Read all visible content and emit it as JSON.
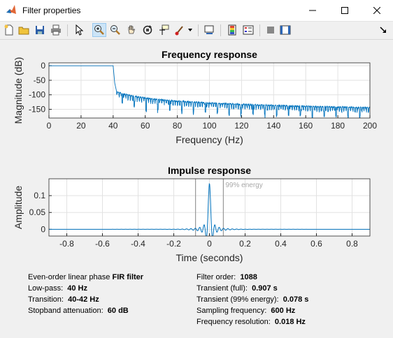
{
  "window": {
    "title": "Filter properties"
  },
  "toolbar": {
    "items": [
      {
        "name": "new-figure-icon"
      },
      {
        "name": "open-file-icon"
      },
      {
        "name": "save-icon"
      },
      {
        "name": "print-icon"
      },
      {
        "name": "edit-plot-cursor-icon"
      },
      {
        "name": "zoom-in-icon",
        "active": true
      },
      {
        "name": "zoom-out-icon"
      },
      {
        "name": "pan-hand-icon"
      },
      {
        "name": "rotate-3d-icon"
      },
      {
        "name": "data-cursor-icon"
      },
      {
        "name": "brush-icon"
      },
      {
        "name": "link-plot-icon"
      },
      {
        "name": "insert-colorbar-icon"
      },
      {
        "name": "insert-legend-icon"
      },
      {
        "name": "hide-plot-tools-icon"
      },
      {
        "name": "show-plot-tools-icon"
      }
    ]
  },
  "chart_data": [
    {
      "type": "line",
      "title": "Frequency response",
      "xlabel": "Frequency (Hz)",
      "ylabel": "Magnitude (dB)",
      "xlim": [
        0,
        200
      ],
      "ylim": [
        -180,
        10
      ],
      "xticks": [
        "0",
        "20",
        "40",
        "60",
        "80",
        "100",
        "120",
        "140",
        "160",
        "180",
        "200"
      ],
      "yticks": [
        "0",
        "-50",
        "-100",
        "-150"
      ],
      "grid": true,
      "series": [
        {
          "color": "#0072bd",
          "x": [
            0,
            40,
            41,
            42,
            44,
            60,
            100,
            150,
            200
          ],
          "y": [
            0,
            0,
            -50,
            -80,
            -90,
            -105,
            -115,
            -120,
            -125
          ]
        }
      ]
    },
    {
      "type": "line",
      "title": "Impulse response",
      "xlabel": "Time (seconds)",
      "ylabel": "Amplitude",
      "xlim": [
        -0.9,
        0.9
      ],
      "ylim": [
        -0.02,
        0.15
      ],
      "xticks": [
        "-0.8",
        "-0.6",
        "-0.4",
        "-0.2",
        "0",
        "0.2",
        "0.4",
        "0.6",
        "0.8"
      ],
      "yticks": [
        "0.1",
        "0.05",
        "0"
      ],
      "grid": true,
      "annotation": "99% energy",
      "energy_bounds": [
        -0.078,
        0.078
      ],
      "series": [
        {
          "color": "#0072bd"
        }
      ]
    }
  ],
  "info_left": {
    "line1_text": "Even-order linear phase ",
    "line1_value": "FIR filter",
    "line2_text": "Low-pass:",
    "line2_value": "40 Hz",
    "line3_text": "Transition:",
    "line3_value": "40-42 Hz",
    "line4_text": "Stopband attenuation:",
    "line4_value": "60 dB"
  },
  "info_right": {
    "line1_text": "Filter order:",
    "line1_value": "1088",
    "line2_text": "Transient (full):",
    "line2_value": "0.907 s",
    "line3_text": "Transient (99% energy):",
    "line3_value": "0.078 s",
    "line4_text": "Sampling frequency:",
    "line4_value": "600 Hz",
    "line5_text": "Frequency resolution:",
    "line5_value": "0.018 Hz"
  }
}
